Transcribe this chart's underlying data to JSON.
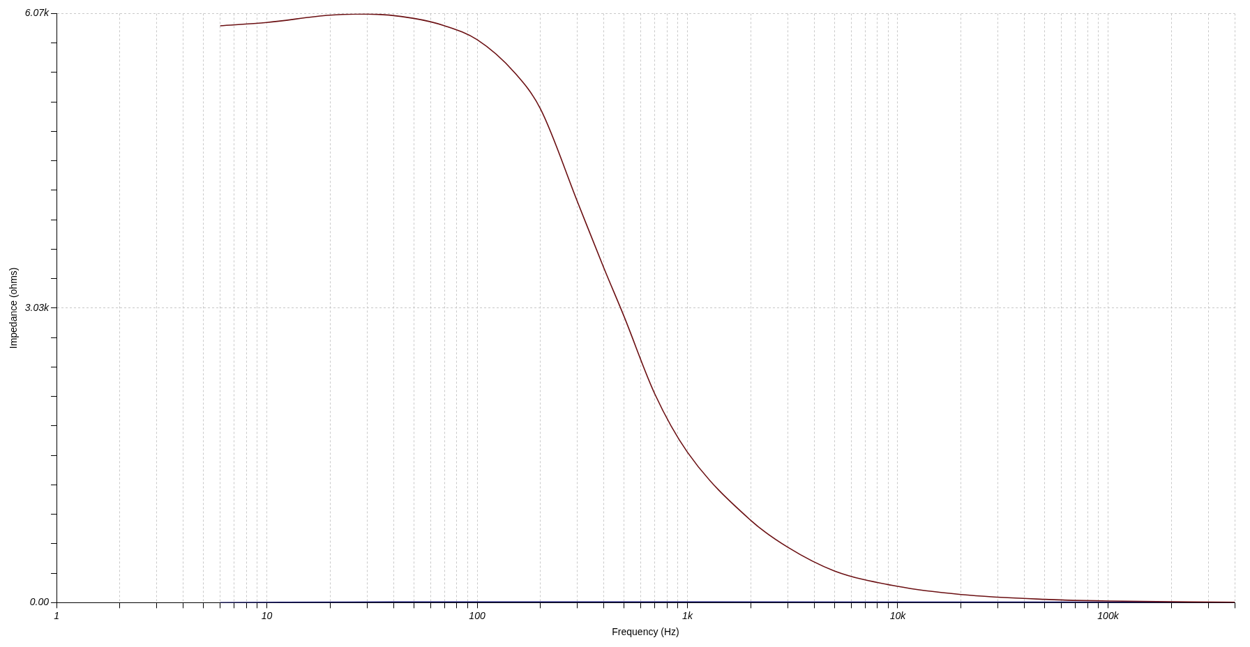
{
  "chart_data": {
    "type": "line",
    "xlabel": "Frequency (Hz)",
    "ylabel": "Impedance (ohms)",
    "log": "x",
    "grid": true,
    "legend": false,
    "marker": "none",
    "line_style": "solid",
    "xlim": [
      1,
      400000
    ],
    "xticks": [
      1,
      {
        "value": 2,
        "label": null
      },
      {
        "value": 3,
        "label": null
      },
      {
        "value": 4,
        "label": null
      },
      {
        "value": 5,
        "label": null
      },
      {
        "value": 6,
        "label": null
      },
      {
        "value": 7,
        "label": null
      },
      {
        "value": 8,
        "label": null
      },
      {
        "value": 9,
        "label": null
      },
      10,
      {
        "value": 20,
        "label": null
      },
      {
        "value": 30,
        "label": null
      },
      {
        "value": 40,
        "label": null
      },
      {
        "value": 50,
        "label": null
      },
      {
        "value": 60,
        "label": null
      },
      {
        "value": 70,
        "label": null
      },
      {
        "value": 80,
        "label": null
      },
      {
        "value": 90,
        "label": null
      },
      100,
      {
        "value": 200,
        "label": null
      },
      {
        "value": 300,
        "label": null
      },
      {
        "value": 400,
        "label": null
      },
      {
        "value": 500,
        "label": null
      },
      {
        "value": 600,
        "label": null
      },
      {
        "value": 700,
        "label": null
      },
      {
        "value": 800,
        "label": null
      },
      {
        "value": 900,
        "label": null
      },
      {
        "value": 1000,
        "label": "1k"
      },
      {
        "value": 2000,
        "label": null
      },
      {
        "value": 3000,
        "label": null
      },
      {
        "value": 4000,
        "label": null
      },
      {
        "value": 5000,
        "label": null
      },
      {
        "value": 6000,
        "label": null
      },
      {
        "value": 7000,
        "label": null
      },
      {
        "value": 8000,
        "label": null
      },
      {
        "value": 9000,
        "label": null
      },
      {
        "value": 10000,
        "label": "10k"
      },
      {
        "value": 20000,
        "label": null
      },
      {
        "value": 30000,
        "label": null
      },
      {
        "value": 40000,
        "label": null
      },
      {
        "value": 50000,
        "label": null
      },
      {
        "value": 60000,
        "label": null
      },
      {
        "value": 70000,
        "label": null
      },
      {
        "value": 80000,
        "label": null
      },
      {
        "value": 90000,
        "label": null
      },
      {
        "value": 100000,
        "label": "100k"
      },
      {
        "value": 200000,
        "label": null
      },
      {
        "value": 300000,
        "label": null
      },
      {
        "value": 400000,
        "label": null
      }
    ],
    "ylim": [
      0,
      6070
    ],
    "yticks": [
      {
        "value": 0,
        "label": "0.00"
      },
      {
        "value": 303.5,
        "label": null
      },
      {
        "value": 607,
        "label": null
      },
      {
        "value": 910.5,
        "label": null
      },
      {
        "value": 1214,
        "label": null
      },
      {
        "value": 1517.5,
        "label": null
      },
      {
        "value": 1821,
        "label": null
      },
      {
        "value": 2124.5,
        "label": null
      },
      {
        "value": 2428,
        "label": null
      },
      {
        "value": 2731.5,
        "label": null
      },
      {
        "value": 3035,
        "label": "3.03k"
      },
      {
        "value": 3338.5,
        "label": null
      },
      {
        "value": 3642,
        "label": null
      },
      {
        "value": 3945.5,
        "label": null
      },
      {
        "value": 4249,
        "label": null
      },
      {
        "value": 4552.5,
        "label": null
      },
      {
        "value": 4856,
        "label": null
      },
      {
        "value": 5159.5,
        "label": null
      },
      {
        "value": 5463,
        "label": null
      },
      {
        "value": 5766.5,
        "label": null
      },
      {
        "value": 6070,
        "label": "6.07k"
      }
    ],
    "series": [
      {
        "color": "#6b0f12",
        "x": [
          6,
          10,
          20,
          30,
          50,
          70,
          100,
          150,
          200,
          300,
          400,
          500,
          700,
          1000,
          2000,
          3000,
          5000,
          10000,
          20000,
          50000,
          100000,
          400000
        ],
        "values": [
          5944,
          5978,
          6053,
          6065,
          6020,
          5944,
          5801,
          5466,
          5088,
          4130,
          3451,
          2947,
          2149,
          1550,
          848,
          571,
          327,
          168,
          84,
          34,
          17,
          5
        ]
      },
      {
        "color": "#1c1c72",
        "x": [
          6,
          40,
          1000,
          100000,
          400000
        ],
        "values": [
          0,
          8,
          8,
          5,
          5
        ]
      }
    ]
  }
}
